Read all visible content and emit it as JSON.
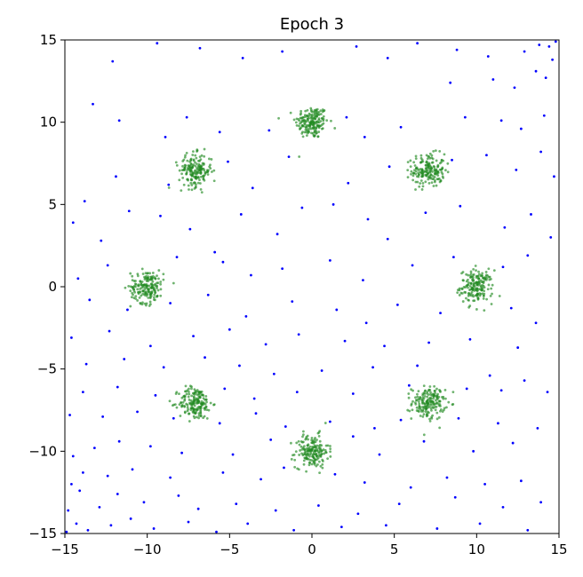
{
  "chart_data": {
    "type": "scatter",
    "title": "Epoch 3",
    "xlabel": "",
    "ylabel": "",
    "xlim": [
      -15,
      15
    ],
    "ylim": [
      -15,
      15
    ],
    "xticks": [
      -15,
      -10,
      -5,
      0,
      5,
      10,
      15
    ],
    "yticks": [
      -15,
      -10,
      -5,
      0,
      5,
      10,
      15
    ],
    "grid": false,
    "legend": "none",
    "series": [
      {
        "color": "#0000ff",
        "values": [
          [
            -12.1,
            13.7
          ],
          [
            -9.4,
            14.8
          ],
          [
            -6.8,
            14.5
          ],
          [
            -4.2,
            13.9
          ],
          [
            -1.8,
            14.3
          ],
          [
            2.7,
            14.6
          ],
          [
            4.6,
            13.9
          ],
          [
            6.4,
            14.8
          ],
          [
            8.8,
            14.4
          ],
          [
            10.7,
            14.0
          ],
          [
            12.9,
            14.3
          ],
          [
            13.6,
            13.1
          ],
          [
            14.2,
            12.7
          ],
          [
            14.6,
            13.8
          ],
          [
            14.8,
            14.9
          ],
          [
            14.4,
            14.6
          ],
          [
            13.8,
            14.7
          ],
          [
            12.3,
            12.1
          ],
          [
            11.0,
            12.6
          ],
          [
            8.4,
            12.4
          ],
          [
            -13.3,
            11.1
          ],
          [
            -11.7,
            10.1
          ],
          [
            -8.9,
            9.1
          ],
          [
            -7.6,
            10.3
          ],
          [
            -5.6,
            9.4
          ],
          [
            -2.6,
            9.5
          ],
          [
            2.1,
            10.3
          ],
          [
            3.2,
            9.1
          ],
          [
            5.4,
            9.7
          ],
          [
            9.3,
            10.3
          ],
          [
            11.5,
            10.1
          ],
          [
            12.7,
            9.6
          ],
          [
            14.1,
            10.4
          ],
          [
            13.9,
            8.2
          ],
          [
            14.7,
            6.7
          ],
          [
            12.4,
            7.1
          ],
          [
            10.6,
            8.0
          ],
          [
            8.5,
            7.7
          ],
          [
            4.7,
            7.3
          ],
          [
            2.2,
            6.3
          ],
          [
            -1.4,
            7.9
          ],
          [
            -3.6,
            6.0
          ],
          [
            -5.1,
            7.6
          ],
          [
            -8.7,
            6.2
          ],
          [
            -11.9,
            6.7
          ],
          [
            -13.8,
            5.2
          ],
          [
            -14.5,
            3.9
          ],
          [
            -12.8,
            2.8
          ],
          [
            -11.1,
            4.6
          ],
          [
            -9.2,
            4.3
          ],
          [
            -7.4,
            3.5
          ],
          [
            -5.9,
            2.1
          ],
          [
            -4.3,
            4.4
          ],
          [
            -2.1,
            3.2
          ],
          [
            -0.6,
            4.8
          ],
          [
            1.3,
            5.0
          ],
          [
            3.4,
            4.1
          ],
          [
            4.6,
            2.9
          ],
          [
            6.9,
            4.5
          ],
          [
            9.0,
            4.9
          ],
          [
            11.7,
            3.6
          ],
          [
            13.3,
            4.4
          ],
          [
            14.5,
            3.0
          ],
          [
            13.1,
            1.9
          ],
          [
            11.6,
            1.2
          ],
          [
            8.6,
            1.8
          ],
          [
            6.1,
            1.3
          ],
          [
            3.1,
            0.4
          ],
          [
            1.1,
            1.6
          ],
          [
            -1.8,
            1.1
          ],
          [
            -3.7,
            0.7
          ],
          [
            -5.4,
            1.5
          ],
          [
            -8.2,
            1.8
          ],
          [
            -12.4,
            1.3
          ],
          [
            -14.2,
            0.5
          ],
          [
            -13.5,
            -0.8
          ],
          [
            -11.2,
            -1.4
          ],
          [
            -8.6,
            -1.0
          ],
          [
            -6.3,
            -0.5
          ],
          [
            -4.0,
            -1.8
          ],
          [
            -1.2,
            -0.9
          ],
          [
            1.5,
            -1.4
          ],
          [
            3.3,
            -2.2
          ],
          [
            5.2,
            -1.1
          ],
          [
            7.8,
            -1.6
          ],
          [
            12.1,
            -1.3
          ],
          [
            13.6,
            -2.2
          ],
          [
            12.5,
            -3.7
          ],
          [
            9.6,
            -3.2
          ],
          [
            7.1,
            -3.4
          ],
          [
            4.4,
            -3.6
          ],
          [
            2.0,
            -3.3
          ],
          [
            -0.8,
            -2.9
          ],
          [
            -2.8,
            -3.5
          ],
          [
            -5.0,
            -2.6
          ],
          [
            -7.2,
            -3.0
          ],
          [
            -9.8,
            -3.6
          ],
          [
            -12.3,
            -2.7
          ],
          [
            -14.6,
            -3.1
          ],
          [
            -13.7,
            -4.7
          ],
          [
            -11.4,
            -4.4
          ],
          [
            -9.0,
            -4.9
          ],
          [
            -6.5,
            -4.3
          ],
          [
            -4.4,
            -4.8
          ],
          [
            -2.3,
            -5.3
          ],
          [
            0.6,
            -5.1
          ],
          [
            3.7,
            -4.9
          ],
          [
            6.4,
            -4.8
          ],
          [
            10.8,
            -5.4
          ],
          [
            12.9,
            -5.7
          ],
          [
            14.3,
            -6.4
          ],
          [
            11.5,
            -6.3
          ],
          [
            9.4,
            -6.2
          ],
          [
            5.9,
            -6.0
          ],
          [
            2.5,
            -6.5
          ],
          [
            -0.9,
            -6.4
          ],
          [
            -3.5,
            -6.8
          ],
          [
            -5.3,
            -6.2
          ],
          [
            -9.5,
            -6.6
          ],
          [
            -11.8,
            -6.1
          ],
          [
            -13.9,
            -6.4
          ],
          [
            -14.7,
            -7.8
          ],
          [
            -12.7,
            -7.9
          ],
          [
            -10.6,
            -7.6
          ],
          [
            -8.4,
            -8.0
          ],
          [
            -5.6,
            -8.3
          ],
          [
            -3.4,
            -7.7
          ],
          [
            -1.6,
            -8.5
          ],
          [
            1.1,
            -8.2
          ],
          [
            3.8,
            -8.6
          ],
          [
            5.4,
            -8.1
          ],
          [
            8.9,
            -8.0
          ],
          [
            11.3,
            -8.3
          ],
          [
            13.7,
            -8.6
          ],
          [
            12.2,
            -9.5
          ],
          [
            9.8,
            -10.0
          ],
          [
            6.8,
            -9.4
          ],
          [
            4.1,
            -10.2
          ],
          [
            2.5,
            -9.1
          ],
          [
            -2.5,
            -9.3
          ],
          [
            -4.8,
            -10.2
          ],
          [
            -7.9,
            -10.1
          ],
          [
            -9.8,
            -9.7
          ],
          [
            -11.7,
            -9.4
          ],
          [
            -13.2,
            -9.8
          ],
          [
            -14.5,
            -10.3
          ],
          [
            -13.9,
            -11.3
          ],
          [
            -12.4,
            -11.5
          ],
          [
            -10.9,
            -11.1
          ],
          [
            -8.6,
            -11.6
          ],
          [
            -5.4,
            -11.3
          ],
          [
            -3.1,
            -11.7
          ],
          [
            -1.7,
            -11.0
          ],
          [
            1.4,
            -11.4
          ],
          [
            3.2,
            -11.9
          ],
          [
            6.0,
            -12.2
          ],
          [
            8.2,
            -11.6
          ],
          [
            10.5,
            -12.0
          ],
          [
            12.7,
            -11.8
          ],
          [
            13.9,
            -13.1
          ],
          [
            11.6,
            -13.4
          ],
          [
            8.7,
            -12.8
          ],
          [
            5.3,
            -13.2
          ],
          [
            2.8,
            -13.8
          ],
          [
            0.4,
            -13.3
          ],
          [
            -2.2,
            -13.6
          ],
          [
            -4.6,
            -13.2
          ],
          [
            -6.9,
            -13.5
          ],
          [
            -8.1,
            -12.7
          ],
          [
            -10.2,
            -13.1
          ],
          [
            -11.8,
            -12.6
          ],
          [
            -12.9,
            -13.4
          ],
          [
            -14.1,
            -12.4
          ],
          [
            -14.8,
            -13.6
          ],
          [
            -14.3,
            -14.4
          ],
          [
            -13.6,
            -14.8
          ],
          [
            -12.2,
            -14.5
          ],
          [
            -11.0,
            -14.1
          ],
          [
            -9.6,
            -14.7
          ],
          [
            -7.5,
            -14.3
          ],
          [
            -5.8,
            -14.9
          ],
          [
            -3.9,
            -14.4
          ],
          [
            -1.1,
            -14.8
          ],
          [
            1.8,
            -14.6
          ],
          [
            4.5,
            -14.5
          ],
          [
            7.6,
            -14.7
          ],
          [
            10.2,
            -14.4
          ],
          [
            13.1,
            -14.8
          ],
          [
            -14.9,
            -14.9
          ],
          [
            -14.6,
            -12.0
          ]
        ]
      },
      {
        "color": "#228b22",
        "clusters": [
          [
            0,
            10
          ],
          [
            7.07,
            7.07
          ],
          [
            10,
            0
          ],
          [
            7.07,
            -7.07
          ],
          [
            0,
            -10
          ],
          [
            -7.07,
            -7.07
          ],
          [
            -10,
            0
          ],
          [
            -7.07,
            7.07
          ]
        ],
        "cluster_spread": 0.5,
        "points_per_cluster": 180
      }
    ]
  }
}
